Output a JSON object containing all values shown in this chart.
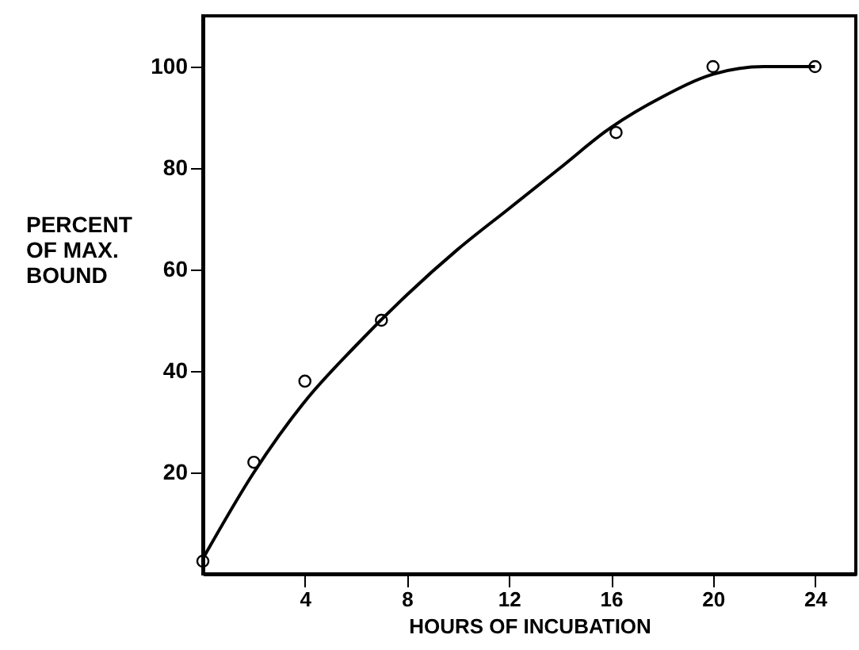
{
  "chart_data": {
    "type": "scatter",
    "xlabel": "HOURS OF INCUBATION",
    "ylabel": "PERCENT OF MAX. BOUND",
    "xlim": [
      0,
      25.6
    ],
    "ylim": [
      0,
      110
    ],
    "xticks": [
      4,
      8,
      12,
      16,
      20,
      24
    ],
    "yticks": [
      20,
      40,
      60,
      80,
      100
    ],
    "grid": false,
    "marker": "circle",
    "series": [
      {
        "color": "#000000",
        "x": [
          0,
          2,
          4,
          7,
          16.2,
          20,
          24
        ],
        "values": [
          2.5,
          22,
          38,
          50,
          87,
          100,
          100
        ]
      },
      {
        "type": "line",
        "color": "#000000",
        "marker": "none",
        "x": [
          0,
          2,
          4,
          6,
          8,
          10,
          12,
          14,
          16,
          18,
          20,
          22,
          24
        ],
        "values": [
          3,
          20,
          34,
          45,
          55,
          64,
          72,
          80,
          88,
          94,
          98.5,
          100,
          100
        ]
      }
    ]
  }
}
